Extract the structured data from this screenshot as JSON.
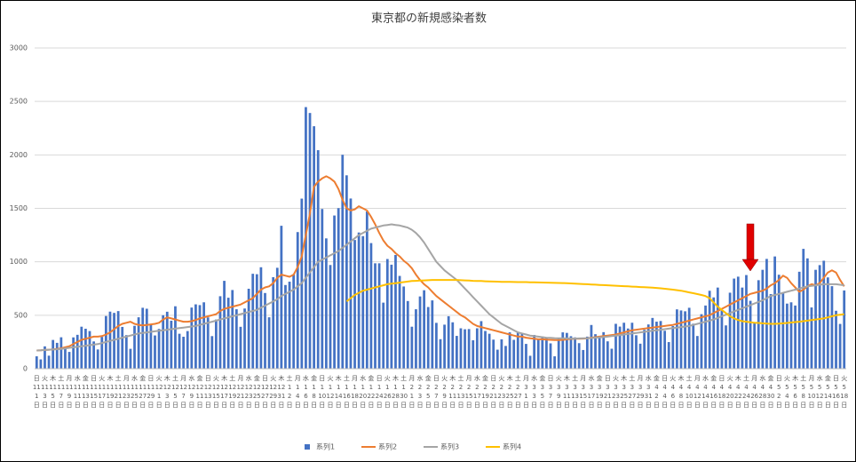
{
  "chart_data": {
    "type": "bar",
    "title": "東京都の新規感染者数",
    "categories": [
      "日 11 1 日",
      null,
      "火 11 3 日",
      null,
      "木 11 5 日",
      null,
      "土 11 7 日",
      null,
      "月 11 9 日",
      null,
      "水 11 11 日",
      null,
      "金 11 13 日",
      null,
      "日 11 15 日",
      null,
      "火 11 17 日",
      null,
      "木 11 19 日",
      null,
      "土 11 21 日",
      null,
      "月 11 23 日",
      null,
      "水 11 25 日",
      null,
      "金 11 27 日",
      null,
      "日 11 29 日",
      null,
      "火 12 1 日",
      null,
      "木 12 3 日",
      null,
      "土 12 5 日",
      null,
      "月 12 7 日",
      null,
      "水 12 9 日",
      null,
      "金 12 11 日",
      null,
      "日 12 13 日",
      null,
      "火 12 15 日",
      null,
      "木 12 17 日",
      null,
      "土 12 19 日",
      null,
      "月 12 21 日",
      null,
      "水 12 23 日",
      null,
      "金 12 25 日",
      null,
      "日 12 27 日",
      null,
      "火 12 29 日",
      null,
      "木 12 31 日",
      null,
      "土 1 2 日",
      null,
      "月 1 4 日",
      null,
      "水 1 6 日",
      null,
      "金 1 8 日",
      null,
      "日 1 10 日",
      null,
      "火 1 12 日",
      null,
      "木 1 14 日",
      null,
      "土 1 16 日",
      null,
      "月 1 18 日",
      null,
      "水 1 20 日",
      null,
      "金 1 22 日",
      null,
      "日 1 24 日",
      null,
      "火 1 26 日",
      null,
      "木 1 28 日",
      null,
      "土 1 30 日",
      null,
      "月 2 1 日",
      null,
      "水 2 3 日",
      null,
      "金 2 5 日",
      null,
      "日 2 7 日",
      null,
      "火 2 9 日",
      null,
      "木 2 11 日",
      null,
      "土 2 13 日",
      null,
      "月 2 15 日",
      null,
      "水 2 17 日",
      null,
      "金 2 19 日",
      null,
      "日 2 21 日",
      null,
      "火 2 23 日",
      null,
      "木 2 25 日",
      null,
      "土 2 27 日",
      null,
      "月 3 1 日",
      null,
      "水 3 3 日",
      null,
      "金 3 5 日",
      null,
      "日 3 7 日",
      null,
      "火 3 9 日",
      null,
      "木 3 11 日",
      null,
      "土 3 13 日",
      null,
      "月 3 15 日",
      null,
      "水 3 17 日",
      null,
      "金 3 19 日",
      null,
      "日 3 21 日",
      null,
      "火 3 23 日",
      null,
      "木 3 25 日",
      null,
      "土 3 27 日",
      null,
      "月 3 29 日",
      null,
      "水 3 31 日",
      null,
      "金 4 2 日",
      null,
      "日 4 4 日",
      null,
      "火 4 6 日",
      null,
      "木 4 8 日",
      null,
      "土 4 10 日",
      null,
      "月 4 12 日",
      null,
      "水 4 14 日",
      null,
      "金 4 16 日",
      null,
      "日 4 18 日",
      null,
      "火 4 20 日",
      null,
      "木 4 22 日",
      null,
      "土 4 24 日",
      null,
      "月 4 26 日",
      null,
      "水 4 28 日",
      null,
      "金 4 30 日",
      null,
      "日 5 2 日",
      null,
      "火 5 4 日",
      null,
      "木 5 6 日",
      null,
      "土 5 8 日",
      null,
      "月 5 10 日",
      null,
      "水 5 12 日",
      null,
      "金 5 14 日",
      null,
      "日 5 16 日",
      null,
      "火 5 18 日"
    ],
    "series": [
      {
        "name": "系列1",
        "type": "bar",
        "color": "#4472c4",
        "values": [
          116,
          87,
          209,
          122,
          269,
          242,
          294,
          189,
          157,
          293,
          317,
          393,
          374,
          352,
          255,
          180,
          298,
          493,
          534,
          522,
          539,
          391,
          314,
          186,
          401,
          481,
          570,
          561,
          418,
          311,
          372,
          500,
          533,
          449,
          584,
          327,
          299,
          352,
          572,
          602,
          595,
          621,
          480,
          305,
          460,
          678,
          822,
          664,
          736,
          556,
          392,
          563,
          748,
          888,
          884,
          949,
          708,
          481,
          856,
          944,
          1337,
          783,
          814,
          884,
          1278,
          1591,
          2447,
          2392,
          2268,
          2044,
          1494,
          1219,
          970,
          1433,
          1502,
          2001,
          1809,
          1592,
          1204,
          1274,
          1240,
          1471,
          1175,
          986,
          986,
          618,
          1026,
          973,
          1064,
          868,
          769,
          633,
          393,
          556,
          676,
          734,
          577,
          639,
          429,
          276,
          412,
          491,
          434,
          307,
          378,
          369,
          371,
          266,
          378,
          445,
          353,
          327,
          272,
          178,
          275,
          213,
          340,
          270,
          337,
          329,
          232,
          121,
          316,
          279,
          301,
          293,
          237,
          116,
          290,
          340,
          335,
          304,
          293,
          239,
          175,
          300,
          409,
          323,
          303,
          342,
          256,
          187,
          420,
          394,
          430,
          376,
          430,
          313,
          234,
          364,
          414,
          475,
          440,
          446,
          355,
          249,
          399,
          555,
          545,
          537,
          570,
          421,
          306,
          510,
          591,
          729,
          667,
          759,
          543,
          405,
          711,
          843,
          861,
          759,
          876,
          635,
          425,
          828,
          925,
          1027,
          698,
          1050,
          879,
          708,
          609,
          621,
          591,
          907,
          1121,
          1032,
          573,
          925,
          969,
          1010,
          854,
          772,
          542,
          419,
          732
        ]
      },
      {
        "name": "系列2",
        "type": "line",
        "color": "#ed7d31",
        "values": [
          170,
          172,
          175,
          178,
          180,
          185,
          190,
          200,
          210,
          230,
          250,
          270,
          280,
          290,
          300,
          300,
          305,
          320,
          340,
          370,
          400,
          420,
          430,
          440,
          420,
          410,
          405,
          410,
          415,
          420,
          430,
          460,
          480,
          470,
          460,
          450,
          440,
          440,
          445,
          455,
          470,
          480,
          490,
          500,
          510,
          540,
          560,
          570,
          580,
          590,
          600,
          620,
          640,
          660,
          700,
          740,
          760,
          770,
          800,
          850,
          880,
          870,
          860,
          880,
          950,
          1050,
          1250,
          1450,
          1700,
          1750,
          1780,
          1800,
          1780,
          1750,
          1680,
          1580,
          1500,
          1480,
          1490,
          1520,
          1500,
          1480,
          1420,
          1350,
          1270,
          1200,
          1150,
          1120,
          1080,
          1050,
          1010,
          980,
          940,
          880,
          830,
          790,
          760,
          720,
          680,
          650,
          620,
          590,
          560,
          530,
          500,
          480,
          450,
          420,
          400,
          390,
          380,
          370,
          360,
          350,
          340,
          330,
          320,
          310,
          300,
          300,
          290,
          285,
          280,
          275,
          275,
          272,
          270,
          268,
          268,
          270,
          275,
          278,
          280,
          280,
          282,
          285,
          290,
          295,
          300,
          305,
          310,
          315,
          320,
          330,
          340,
          350,
          360,
          365,
          370,
          375,
          380,
          385,
          390,
          395,
          400,
          405,
          410,
          420,
          430,
          440,
          450,
          460,
          470,
          480,
          490,
          500,
          520,
          540,
          560,
          580,
          600,
          620,
          640,
          660,
          680,
          700,
          710,
          720,
          730,
          750,
          780,
          800,
          830,
          870,
          850,
          800,
          760,
          720,
          740,
          770,
          790,
          780,
          800,
          850,
          900,
          920,
          900,
          830,
          770
        ]
      },
      {
        "name": "系列3",
        "type": "line",
        "color": "#a5a5a5",
        "values": [
          170,
          172,
          175,
          178,
          180,
          182,
          185,
          190,
          195,
          200,
          205,
          210,
          215,
          220,
          225,
          230,
          240,
          250,
          260,
          270,
          280,
          290,
          300,
          310,
          320,
          330,
          335,
          340,
          345,
          350,
          355,
          360,
          365,
          370,
          375,
          380,
          385,
          390,
          395,
          400,
          410,
          420,
          430,
          440,
          450,
          460,
          470,
          480,
          490,
          500,
          510,
          520,
          530,
          540,
          550,
          570,
          590,
          610,
          630,
          650,
          680,
          700,
          720,
          740,
          770,
          800,
          850,
          900,
          950,
          1000,
          1020,
          1040,
          1060,
          1080,
          1100,
          1130,
          1160,
          1190,
          1220,
          1250,
          1270,
          1290,
          1310,
          1320,
          1330,
          1340,
          1345,
          1350,
          1345,
          1340,
          1330,
          1320,
          1300,
          1270,
          1230,
          1180,
          1120,
          1060,
          1000,
          960,
          920,
          890,
          860,
          830,
          790,
          750,
          710,
          670,
          630,
          590,
          550,
          510,
          480,
          450,
          420,
          400,
          380,
          360,
          340,
          330,
          320,
          310,
          305,
          300,
          295,
          290,
          288,
          286,
          285,
          284,
          283,
          282,
          282,
          283,
          284,
          285,
          287,
          290,
          293,
          296,
          300,
          305,
          310,
          315,
          320,
          325,
          330,
          335,
          340,
          345,
          350,
          355,
          360,
          365,
          370,
          375,
          380,
          385,
          390,
          395,
          400,
          410,
          420,
          430,
          440,
          450,
          460,
          475,
          490,
          505,
          520,
          535,
          550,
          565,
          580,
          595,
          610,
          625,
          640,
          660,
          680,
          690,
          700,
          710,
          720,
          730,
          740,
          750,
          760,
          770,
          775,
          780,
          785,
          790,
          790,
          790,
          790,
          785,
          780
        ]
      },
      {
        "name": "系列4",
        "type": "line",
        "color": "#ffc000",
        "values": [
          null,
          null,
          null,
          null,
          null,
          null,
          null,
          null,
          null,
          null,
          null,
          null,
          null,
          null,
          null,
          null,
          null,
          null,
          null,
          null,
          null,
          null,
          null,
          null,
          null,
          null,
          null,
          null,
          null,
          null,
          null,
          null,
          null,
          null,
          null,
          null,
          null,
          null,
          null,
          null,
          null,
          null,
          null,
          null,
          null,
          null,
          null,
          null,
          null,
          null,
          null,
          null,
          null,
          null,
          null,
          null,
          null,
          null,
          null,
          null,
          null,
          null,
          null,
          null,
          null,
          null,
          null,
          null,
          null,
          null,
          null,
          null,
          null,
          null,
          null,
          null,
          630,
          660,
          690,
          710,
          730,
          740,
          750,
          760,
          770,
          780,
          790,
          795,
          800,
          805,
          810,
          815,
          820,
          822,
          824,
          826,
          828,
          830,
          830,
          830,
          830,
          830,
          830,
          830,
          828,
          826,
          824,
          822,
          820,
          820,
          818,
          816,
          815,
          814,
          813,
          812,
          812,
          811,
          810,
          810,
          810,
          809,
          808,
          807,
          806,
          805,
          804,
          803,
          802,
          801,
          800,
          798,
          796,
          794,
          792,
          790,
          788,
          786,
          784,
          782,
          780,
          778,
          776,
          774,
          772,
          770,
          768,
          766,
          764,
          762,
          760,
          758,
          755,
          752,
          748,
          744,
          740,
          735,
          730,
          722,
          714,
          706,
          698,
          690,
          680,
          660,
          620,
          580,
          550,
          520,
          490,
          470,
          455,
          445,
          440,
          435,
          430,
          428,
          425,
          422,
          420,
          420,
          422,
          425,
          428,
          432,
          436,
          440,
          445,
          450,
          455,
          460,
          465,
          470,
          480,
          490,
          500,
          505,
          510
        ]
      }
    ],
    "ylim": [
      0,
      3000
    ],
    "yticks": [
      0,
      500,
      1000,
      1500,
      2000,
      2500,
      3000
    ],
    "grid": true,
    "legend": "bottom"
  }
}
